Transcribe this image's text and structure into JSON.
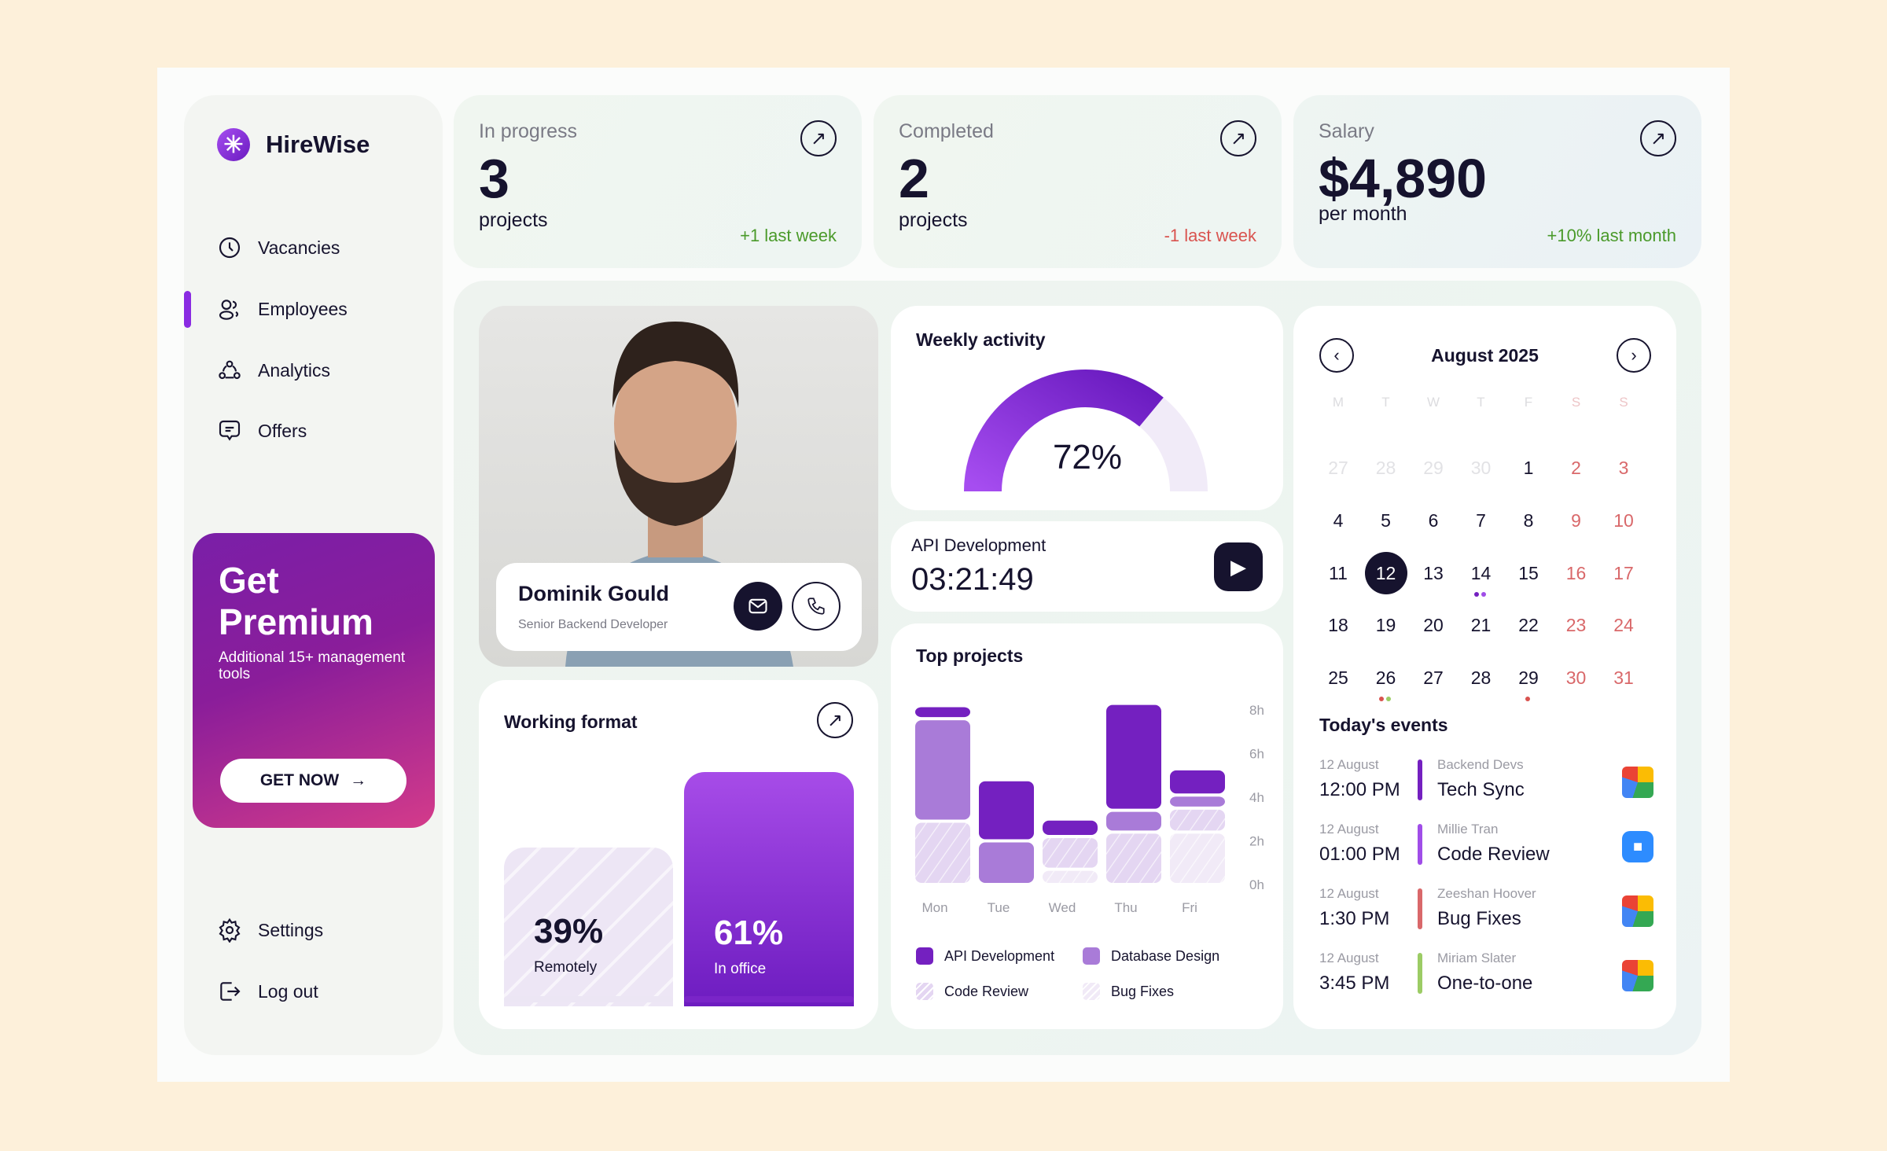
{
  "app": {
    "name": "HireWise",
    "logo_icon": "asterisk-icon"
  },
  "sidebar": {
    "items": [
      {
        "label": "Vacancies",
        "icon": "clock-icon"
      },
      {
        "label": "Employees",
        "icon": "users-icon",
        "active": true
      },
      {
        "label": "Analytics",
        "icon": "network-icon"
      },
      {
        "label": "Offers",
        "icon": "message-icon"
      }
    ],
    "bottom": [
      {
        "label": "Settings",
        "icon": "gear-icon"
      },
      {
        "label": "Log out",
        "icon": "logout-icon"
      }
    ]
  },
  "premium": {
    "title": "Get Premium",
    "subtitle": "Additional 15+ management tools",
    "button": "GET NOW"
  },
  "stats": [
    {
      "label": "In progress",
      "value": "3",
      "unit": "projects",
      "delta": "+1 last week",
      "delta_color": "#4a9a2a"
    },
    {
      "label": "Completed",
      "value": "2",
      "unit": "projects",
      "delta": "-1 last week",
      "delta_color": "#d9534f"
    },
    {
      "label": "Salary",
      "value": "$4,890",
      "unit": "per month",
      "delta": "+10% last month",
      "delta_color": "#4a9a2a"
    }
  ],
  "profile": {
    "name": "Dominik Gould",
    "role": "Senior Backend Developer"
  },
  "working_format": {
    "title": "Working format",
    "remote": {
      "value": "39%",
      "label": "Remotely",
      "fraction": 0.39
    },
    "office": {
      "value": "61%",
      "label": "In office",
      "fraction": 0.61
    }
  },
  "weekly_activity": {
    "title": "Weekly activity",
    "value": "72%",
    "fraction": 0.72
  },
  "timer": {
    "project": "API Development",
    "time": "03:21:49"
  },
  "chart_data": {
    "type": "bar",
    "stacked": true,
    "title": "Top projects",
    "categories": [
      "Mon",
      "Tue",
      "Wed",
      "Thu",
      "Fri"
    ],
    "yticks": [
      "0h",
      "2h",
      "4h",
      "6h",
      "8h"
    ],
    "ylim": [
      0,
      8
    ],
    "legend": "bottom",
    "series": [
      {
        "name": "Bug Fixes",
        "color": "#f1eaf7",
        "hatched": true,
        "values": [
          0,
          0,
          0.7,
          0,
          2.4
        ]
      },
      {
        "name": "Code Review",
        "color": "#e4d6f2",
        "hatched": true,
        "values": [
          2.9,
          0,
          1.5,
          2.4,
          1.1
        ]
      },
      {
        "name": "Database Design",
        "color": "#a97bd8",
        "values": [
          4.7,
          2.0,
          0,
          1.0,
          0.6
        ]
      },
      {
        "name": "API Development",
        "color": "#7420c0",
        "values": [
          0.6,
          2.8,
          0.8,
          4.9,
          1.2
        ]
      }
    ]
  },
  "calendar": {
    "month": "August 2025",
    "weekdays": [
      "M",
      "T",
      "W",
      "T",
      "F",
      "S",
      "S"
    ],
    "days": [
      [
        "27",
        "28",
        "29",
        "30",
        "1",
        "2",
        "3"
      ],
      [
        "4",
        "5",
        "6",
        "7",
        "8",
        "9",
        "10"
      ],
      [
        "11",
        "12",
        "13",
        "14",
        "15",
        "16",
        "17"
      ],
      [
        "18",
        "19",
        "20",
        "21",
        "22",
        "23",
        "24"
      ],
      [
        "25",
        "26",
        "27",
        "28",
        "29",
        "30",
        "31"
      ]
    ],
    "selected": "12",
    "dots": {
      "14": [
        "#7420c0",
        "#a04de8"
      ],
      "26": [
        "#d9534f",
        "#9ccc65"
      ],
      "29": [
        "#d9534f"
      ]
    }
  },
  "events": {
    "title": "Today's events",
    "items": [
      {
        "date": "12 August",
        "time": "12:00 PM",
        "who": "Backend Devs",
        "name": "Tech Sync",
        "color": "#7420c0",
        "app": "google-meet-icon"
      },
      {
        "date": "12 August",
        "time": "01:00 PM",
        "who": "Millie Tran",
        "name": "Code Review",
        "color": "#a04de8",
        "app": "zoom-icon"
      },
      {
        "date": "12 August",
        "time": "1:30 PM",
        "who": "Zeeshan Hoover",
        "name": "Bug Fixes",
        "color": "#d9686a",
        "app": "google-meet-icon"
      },
      {
        "date": "12 August",
        "time": "3:45 PM",
        "who": "Miriam Slater",
        "name": "One-to-one",
        "color": "#9ccc65",
        "app": "google-meet-icon"
      }
    ]
  }
}
